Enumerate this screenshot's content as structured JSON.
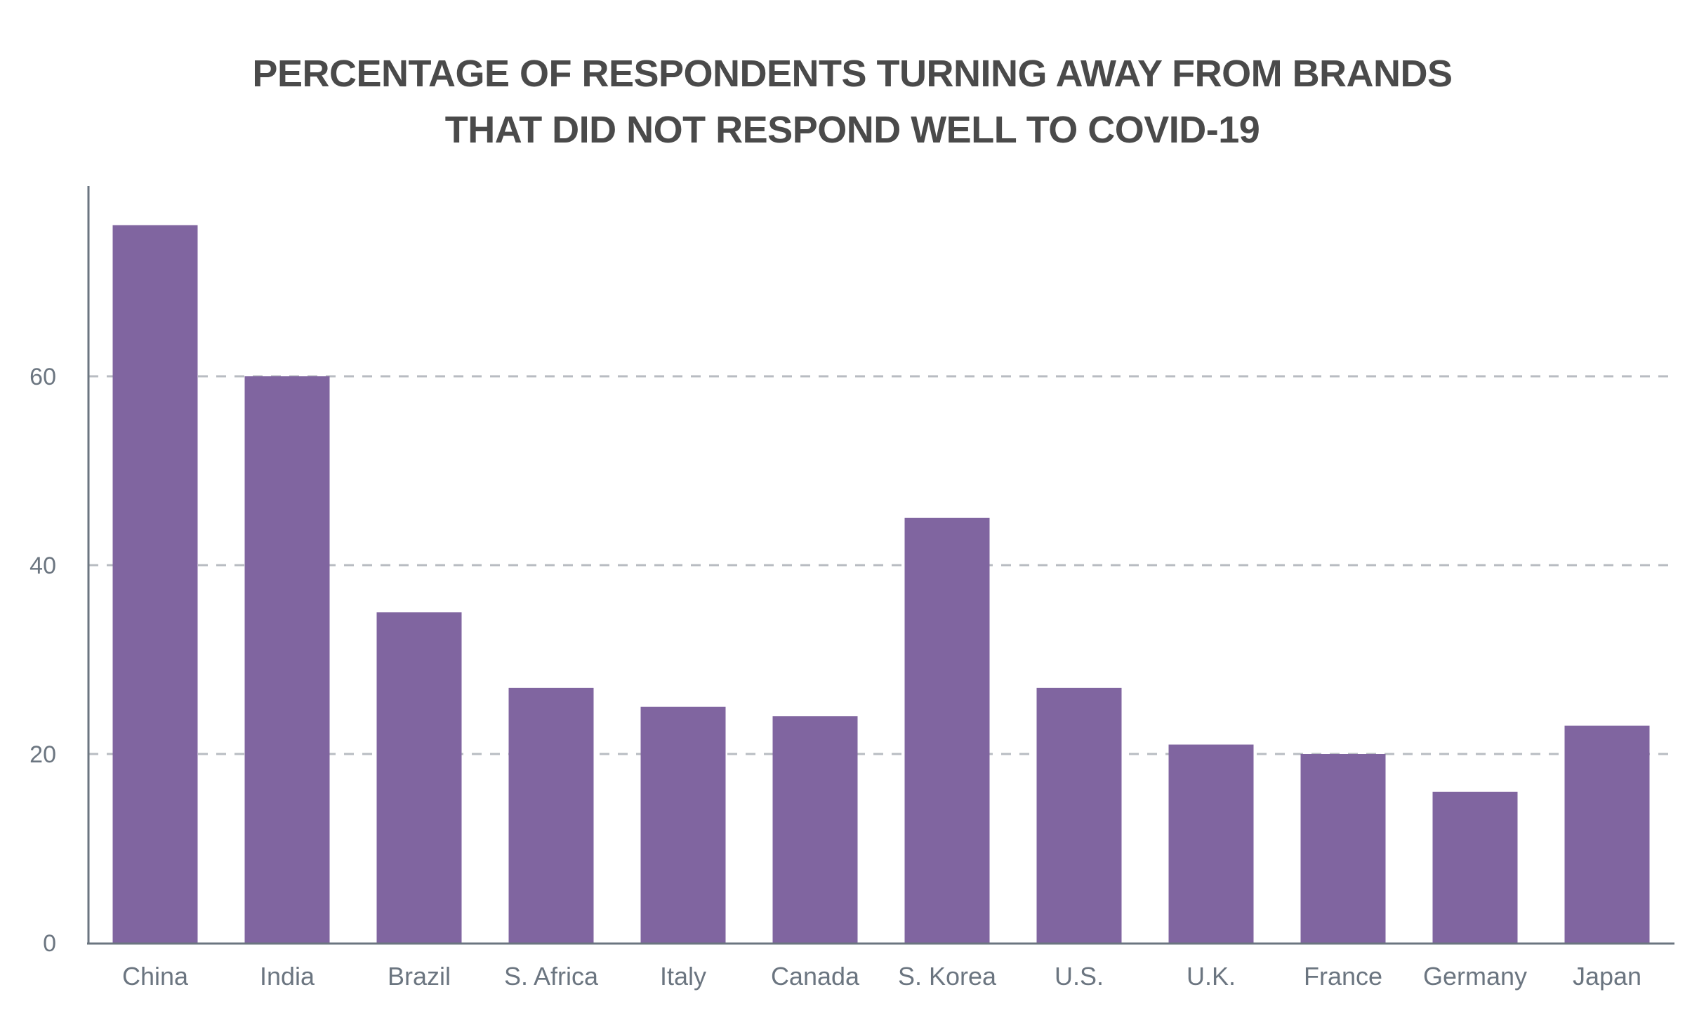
{
  "chart_data": {
    "type": "bar",
    "title": "PERCENTAGE OF RESPONDENTS TURNING AWAY FROM BRANDS THAT DID NOT RESPOND WELL TO COVID-19",
    "title_lines": [
      "PERCENTAGE OF RESPONDENTS TURNING AWAY FROM BRANDS",
      "THAT DID NOT RESPOND WELL TO COVID-19"
    ],
    "xlabel": "",
    "ylabel": "",
    "categories": [
      "China",
      "India",
      "Brazil",
      "S. Africa",
      "Italy",
      "Canada",
      "S. Korea",
      "U.S.",
      "U.K.",
      "France",
      "Germany",
      "Japan"
    ],
    "values": [
      76,
      60,
      35,
      27,
      25,
      24,
      45,
      27,
      21,
      20,
      16,
      23
    ],
    "ylim": [
      0,
      80
    ],
    "yticks": [
      0,
      20,
      40,
      60
    ],
    "ytick_labels": [
      "0",
      "20",
      "40",
      "60"
    ],
    "grid": true,
    "grid_style": "dashed",
    "legend": "none",
    "colors": {
      "bar": "#8065a0",
      "title": "#4a4a4a",
      "axis": "#6b7580",
      "grid": "#b8bcc2"
    }
  }
}
